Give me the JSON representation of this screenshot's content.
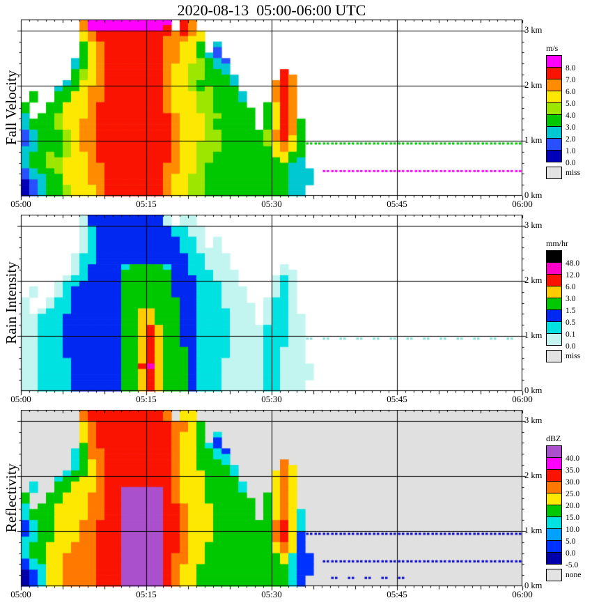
{
  "chart_data": {
    "type": "heatmap",
    "title": "2020-08-13  05:00-06:00 UTC",
    "x_ticks": [
      "05:00",
      "05:15",
      "05:30",
      "05:45",
      "06:00"
    ],
    "x_minutes_max": 60,
    "minutes_per_column": 1,
    "km_per_row": 0.1,
    "height_km_max": 3.2,
    "y_axis_labels": [
      {
        "label": "3 km",
        "km": 3
      },
      {
        "label": "2 km",
        "km": 2
      },
      {
        "label": "1 km",
        "km": 1
      },
      {
        "label": "0 km",
        "km": 0
      }
    ],
    "h_gridlines_km": [
      1,
      2,
      3
    ],
    "v_gridlines_min": [
      15,
      30,
      45
    ],
    "panels": [
      {
        "name": "fall-velocity",
        "ylabel": "Fall Velocity",
        "unit": "m/s",
        "background": "#ffffff",
        "dashed_chars": "gm",
        "palette": {
          "M": "#ff00ff",
          "R": "#fa1400",
          "O": "#ff8c00",
          "Y": "#fce800",
          "L": "#9ce600",
          "G": "#00c800",
          "C": "#00c8d2",
          "B": "#2850ff",
          "D": "#0000b9",
          "g": "#00c800",
          "m": "#ff00ff"
        },
        "colorbar": [
          {
            "color": "#ff00ff",
            "label": "8.0"
          },
          {
            "color": "#fa1400",
            "label": "7.0"
          },
          {
            "color": "#ff8c00",
            "label": "6.0"
          },
          {
            "color": "#fce800",
            "label": "5.0"
          },
          {
            "color": "#9ce600",
            "label": "4.0"
          },
          {
            "color": "#00c800",
            "label": "3.0"
          },
          {
            "color": "#00c8d2",
            "label": "2.0"
          },
          {
            "color": "#2850ff",
            "label": "1.0"
          },
          {
            "color": "#0000b9",
            "label": "0.0"
          },
          {
            "color": "#e3e3e3",
            "label": "miss",
            "gap": true
          }
        ],
        "grid": [
          ".......OMMMMMMMMMM.RO",
          ".......OMMMMMMMMMR.RO",
          ".......YORRRRRRRRROROY",
          ".......YORRRRRRRROOOYY",
          ".......GYORRRRRRROOYYG.C",
          ".......GYORRRRRRROOYYG.B",
          ".......GYORRRRRRROOYYGCB",
          "......CGYORRRRRRROOYYLGCB",
          "......CGYORRRRRRROYYLLGCC",
          "......GLYORRRRRRROYYLLGGC......R",
          "......GLYORRRRRRROYYLLGGGC.....RO",
          ".....CGYYORRRRRRROYYLGGGGC....ORO",
          "....CGGYOORRRRRRROYYLGLGGG....ORO",
          ".G..GGYYOORRRRRRROYYYLLGGGC...ORO",
          ".G..GGYYOORRRRRRROYYYLLGGGC...ORO",
          "G..GGYYYORRRRRRRROYYYLLGGGG..GYRO",
          "G..GGYYYORRRRRRRROYYYLLGGGGG.GYRO",
          "C.GGLYYYORRRRRRRRROYYYLLGGGG.GYRO",
          "CGGGLYYOORRRRRRRRROYYYLGGGGG.GYROG",
          "CGGGLYYOORRRRRRRRROYYYLGGGGG.GYROG",
          "BCGGGLYOORRRRRRRRROYYYLLGGGGGLOROG",
          "BCGGGLYOORRRRRRRRROYYYLLGGGGGLORYG",
          "BCGGGLYOORRRRRRRRROYYLLLGGGGGLYOYGgggggggggggggggggggggggggg",
          "CCGGGLYOORRRRRRRRROYYLLLGGGGGGYOYG",
          "CGGLGLYYORRRRRRRRROYYLLGGGGGGGYYGG",
          "CGGLLYYYORRRRRRRRROYYLLGGGGGGGGYGC",
          "CGGLLYYYOORRRRRRROOYYLGGGGGGGGGGCC",
          "BCGGLYYYOORRRRRRROOYYLGGGGGGGGGGCCC.mmmmmmmmmmmmmmmmmmmmmmmm",
          "BCCGGYYYOORRRRRRROYYLLGGGGGGGGGGCCC",
          "DBCGGYYYOORRRRRRROYYLLGGGGGGGGGGCCC",
          "DBCGGLYYYORRRRRRROYYLLGGGGGGGGGGCC",
          "DBCGGLYYYORRRRRRROYYLLGGGGGGGGGGCC"
        ]
      },
      {
        "name": "rain-intensity",
        "ylabel": "Rain Intensity",
        "unit": "mm/hr",
        "background": "#ffffff",
        "dashed_chars": "d",
        "palette": {
          "K": "#000000",
          "M": "#ff00c8",
          "R": "#fa1400",
          "Y": "#ffcc00",
          "G": "#00c800",
          "B": "#0028f0",
          "C": "#00e1e1",
          "c": "#c3f5f0",
          "d": "#7adeda"
        },
        "colorbar": [
          {
            "color": "#000000",
            "label": "48.0"
          },
          {
            "color": "#ff00c8",
            "label": "12.0"
          },
          {
            "color": "#fa1400",
            "label": "6.0"
          },
          {
            "color": "#ffcc00",
            "label": "3.0"
          },
          {
            "color": "#00c800",
            "label": "1.5"
          },
          {
            "color": "#0028f0",
            "label": "0.5"
          },
          {
            "color": "#00e1e1",
            "label": "0.1"
          },
          {
            "color": "#c3f5f0",
            "label": "0.0"
          },
          {
            "color": "#e3e3e3",
            "label": "miss",
            "gap": true
          }
        ],
        "grid": [
          ".......cBBBBBBBBBc.cc",
          ".......cBBBBBBBBBc.cc",
          ".......cCBBBBBBBBBCCcc",
          ".......cCBBBBBBBBBCCcc",
          ".......cCBBBBBBBBBBCCc.c",
          ".......cCBBBBBBBBBBCCc.c",
          ".......cCBBBBBBBBBBCCccc",
          "......cCCBBBBBBBBBBBCCccc",
          "......cCCBBBBBBBBBBBCCccc",
          "......cCBBBBCGGGGCBBCCccc......c",
          "......cCBBBBGGGGGGBBCCCccc.....cc",
          ".....cCCBBBBGGGGGGBBBCCccc....cCc",
          "....cCCBBBBBGGGGGGBBBCCCcc....cCc",
          ".c..cCBBBBBBGGGGGGBBBCCCccc...cCc",
          ".c..cCBBBBBBGGGGGGBBBCCCccc...cCc",
          "c..cCCBBBBBBGGGGGGGBBCCCccc..cCCc",
          "c..cCCBBBBBBGGGGGGGBBCCCcccc.cCCc",
          "c.cCCCBBBBBBGGYYGGGBBCCCCccc.cCCc",
          "ccCCCBBBBBBBGGYYGGGBBCCCCccc.cCCcc",
          "ccCCCBBBBBBBGGYYGGGBBCCCCccc.cCCcc",
          "ccCCCBBBBBBBGGYRYGGBBCCCCccccCCCcc",
          "ccCCCBBBBBBBGGYRYGGBBCCCCccccCCCcc",
          "ccCCCBBBBBBBGGYRYGGBBCCCCccccCCCccd.d.d.d.d.d.d.d.d.d.d.d.d.",
          "ccCCCBBBBBBBGGYRYGGBBCCCCccccCCCcc",
          "ccCCCBBBBBBBGGYRYGGGBCCCCccccCCccc",
          "ccCCCBBBBBBBGGYRYGGGBCCCCccccCCccc",
          "ccCCCCBBBBBBGGYRYGGGBCCCcccccCCccc",
          "ccCCCCBBBBBBGGRMYGGGBCCCcccccCCcccc",
          "ccCCCCBBBBBBGGYRYGGGBCCCcccccCCcccc",
          "ccCCCCBBBBBBGGYRYGGGBCCCcccccCCcccc",
          "ccCCCCBBBBBBGGYRYGGGBCCCcccccCCccc",
          "ccCCCCBBBBBBGGYRYGGGBCCCcccccCCccc"
        ]
      },
      {
        "name": "reflectivity",
        "ylabel": "Reflectivity",
        "unit": "dBZ",
        "background": "#e0e0e0",
        "dashed_chars": "b",
        "palette": {
          "P": "#aa50cd",
          "M": "#ff00ff",
          "R": "#fa1400",
          "O": "#ff7800",
          "Y": "#fce800",
          "G": "#00c800",
          "C": "#00e1e1",
          "A": "#00a0ff",
          "B": "#0032ff",
          "D": "#0000aa",
          "b": "#0000d2"
        },
        "colorbar": [
          {
            "color": "#aa50cd",
            "label": "40.0"
          },
          {
            "color": "#ff00ff",
            "label": "35.0"
          },
          {
            "color": "#fa1400",
            "label": "30.0"
          },
          {
            "color": "#ff7800",
            "label": "25.0"
          },
          {
            "color": "#fce800",
            "label": "20.0"
          },
          {
            "color": "#00c800",
            "label": "15.0"
          },
          {
            "color": "#00e1e1",
            "label": "10.0"
          },
          {
            "color": "#00a0ff",
            "label": "5.0"
          },
          {
            "color": "#0032ff",
            "label": "0.0"
          },
          {
            "color": "#0000aa",
            "label": "-5.0"
          },
          {
            "color": "#e3e3e3",
            "label": "none",
            "gap": true
          }
        ],
        "grid": [
          ".......ORRRRRRRRRO.YY",
          ".......ORRRRRRRRRO.YY",
          ".......YORRRRRRRRROOYG",
          ".......YORRRRRRRRROOYG",
          ".......YORRRRRRRRROYYG.C",
          ".......YORRRRRRRRROYYG.B",
          ".......GORRRRRRRRROYYGCB",
          "......CGOORRRRRRRROYYGGCB",
          "......CGOORRRRRRRROYYGGCC",
          "......CGYORRRRRRRROYYGGGC......O",
          "......CGYORRRRRRRROYYGGGGC.....OY",
          ".....CGGYORRRRRRRROYYYGGGC....YOY",
          "....CGGYYORRRRRRRROYYYGGGG....YOY",
          ".C..GGYYYORRRRRRRROYYYGGGGC...YOY",
          ".C..GGYYYORRPPPPPROYYYGGGGC...YOY",
          "G..GGYYYOORRPPPPPROYYYGGGGG..GYOY",
          "G..GGYYYOORRPPPPPROYYYGGGGGG.GYOY",
          "C.GGYYYYOORRPPPPPRROYYYGGGGG.GYOY",
          "CGGGYYYYOORRPPPPPRROYYYGGGGG.GYOYC",
          "CGGGYYYYOORRPPPPPRROYYYGGGGG.GYOYC",
          "BCGGYYYOORRRPPPPPRROYYYGGGGGGGORYC",
          "BCGGYYYOORRRPPPPPRROYYYGGGGGGGORYC",
          "BCGGYYYOORRRPPPPPRROYYYGGGGGGGORYBbbbbbbbbbbbbbbbbbbbbbbbbbb",
          "CCGGYYYOORRRPPPPPRROYYYGGGGGGGORYB",
          "CGGYYYOOORRRPPPPPRROYYGGGGGGGGYOYB",
          "CGGYYYOOORRRPPPPPRROYYGGGGGGGGYOYB",
          "CGGYYOOOORRRPPPPPROOYYGGGGGGGGGYCBB",
          "BCGYYOOOORRRPPPPPROOYYGGGGGGGGGYCBB.bbbbbbbbbbbbbbbbbbbbbbbb",
          "BCCYYOOOORRRPPPPPROYYGGGGGGGGGGGCBB",
          "DBCYYOOOORRRPPPPPROYYGGGGGGGGGGGCBB",
          "DBCYYOOOORRRPPPPPROYYGGGGGGGGGGGCB...b.b.b.b.b",
          "DBCYYOOOORRRPPPPPROYYGGGGGGGGGGGCB"
        ]
      }
    ]
  }
}
